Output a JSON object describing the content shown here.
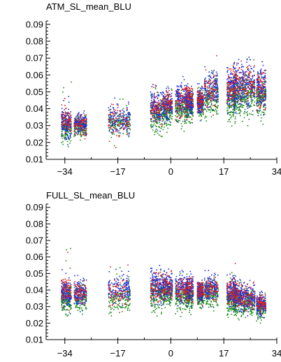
{
  "chart_data": [
    {
      "type": "scatter",
      "title": "ATM_SL_mean_BLU",
      "xlabel": "",
      "ylabel": "",
      "xlim": [
        -40,
        34
      ],
      "ylim": [
        0.01,
        0.092
      ],
      "x_ticks": [
        -34,
        -17,
        0,
        17,
        34
      ],
      "x_tick_labels": [
        "−34",
        "−17",
        "0",
        "17",
        "34"
      ],
      "y_ticks": [
        0.01,
        0.02,
        0.03,
        0.04,
        0.05,
        0.06,
        0.07,
        0.08,
        0.09
      ],
      "y_tick_labels": [
        "0.01",
        "0.02",
        "0.03",
        "0.04",
        "0.05",
        "0.06",
        "0.07",
        "0.08",
        "0.09"
      ],
      "grid": false,
      "legend": "none",
      "series_colors": {
        "blue": "#1f2fd6",
        "red": "#e02020",
        "green": "#1a8a1a"
      },
      "clusters": [
        {
          "x": -33.5,
          "width": 1.6,
          "blue": 0.032,
          "red": 0.033,
          "green": 0.028,
          "spread": 0.004,
          "max": 0.057
        },
        {
          "x": -29.0,
          "width": 2.0,
          "blue": 0.031,
          "red": 0.03,
          "green": 0.029,
          "spread": 0.003,
          "max": 0.036
        },
        {
          "x": -16.5,
          "width": 3.5,
          "blue": 0.034,
          "red": 0.032,
          "green": 0.031,
          "spread": 0.004,
          "max": 0.047
        },
        {
          "x": -4.5,
          "width": 2.0,
          "blue": 0.04,
          "red": 0.039,
          "green": 0.036,
          "spread": 0.005,
          "max": 0.055
        },
        {
          "x": -1.0,
          "width": 1.5,
          "blue": 0.042,
          "red": 0.044,
          "green": 0.038,
          "spread": 0.004,
          "max": 0.053
        },
        {
          "x": 3.5,
          "width": 2.0,
          "blue": 0.045,
          "red": 0.044,
          "green": 0.04,
          "spread": 0.005,
          "max": 0.054
        },
        {
          "x": 6.0,
          "width": 1.2,
          "blue": 0.044,
          "red": 0.046,
          "green": 0.041,
          "spread": 0.004,
          "max": 0.052
        },
        {
          "x": 9.5,
          "width": 1.0,
          "blue": 0.044,
          "red": 0.045,
          "green": 0.043,
          "spread": 0.004,
          "max": 0.05
        },
        {
          "x": 13.0,
          "width": 2.2,
          "blue": 0.051,
          "red": 0.05,
          "green": 0.046,
          "spread": 0.005,
          "max": 0.063
        },
        {
          "x": 19.5,
          "width": 1.5,
          "blue": 0.051,
          "red": 0.052,
          "green": 0.045,
          "spread": 0.006,
          "max": 0.064
        },
        {
          "x": 21.5,
          "width": 1.5,
          "blue": 0.053,
          "red": 0.056,
          "green": 0.047,
          "spread": 0.006,
          "max": 0.076
        },
        {
          "x": 25.0,
          "width": 2.0,
          "blue": 0.054,
          "red": 0.055,
          "green": 0.048,
          "spread": 0.006,
          "max": 0.071
        },
        {
          "x": 29.0,
          "width": 1.5,
          "blue": 0.051,
          "red": 0.052,
          "green": 0.047,
          "spread": 0.006,
          "max": 0.063
        }
      ]
    },
    {
      "type": "scatter",
      "title": "FULL_SL_mean_BLU",
      "xlabel": "",
      "ylabel": "",
      "xlim": [
        -40,
        34
      ],
      "ylim": [
        0.01,
        0.092
      ],
      "x_ticks": [
        -34,
        -17,
        0,
        17,
        34
      ],
      "x_tick_labels": [
        "−34",
        "−17",
        "0",
        "17",
        "34"
      ],
      "y_ticks": [
        0.01,
        0.02,
        0.03,
        0.04,
        0.05,
        0.06,
        0.07,
        0.08,
        0.09
      ],
      "y_tick_labels": [
        "0.01",
        "0.02",
        "0.03",
        "0.04",
        "0.05",
        "0.06",
        "0.07",
        "0.08",
        "0.09"
      ],
      "grid": false,
      "legend": "none",
      "series_colors": {
        "blue": "#1f2fd6",
        "red": "#e02020",
        "green": "#1a8a1a"
      },
      "clusters": [
        {
          "x": -33.5,
          "width": 1.6,
          "blue": 0.038,
          "red": 0.04,
          "green": 0.034,
          "spread": 0.004,
          "max": 0.068
        },
        {
          "x": -29.0,
          "width": 2.0,
          "blue": 0.038,
          "red": 0.038,
          "green": 0.035,
          "spread": 0.004,
          "max": 0.045
        },
        {
          "x": -16.5,
          "width": 3.5,
          "blue": 0.04,
          "red": 0.038,
          "green": 0.035,
          "spread": 0.004,
          "max": 0.054
        },
        {
          "x": -4.5,
          "width": 2.0,
          "blue": 0.042,
          "red": 0.041,
          "green": 0.037,
          "spread": 0.005,
          "max": 0.056
        },
        {
          "x": -1.0,
          "width": 1.5,
          "blue": 0.042,
          "red": 0.043,
          "green": 0.038,
          "spread": 0.004,
          "max": 0.053
        },
        {
          "x": 3.5,
          "width": 2.0,
          "blue": 0.041,
          "red": 0.04,
          "green": 0.036,
          "spread": 0.004,
          "max": 0.051
        },
        {
          "x": 6.0,
          "width": 1.2,
          "blue": 0.04,
          "red": 0.041,
          "green": 0.036,
          "spread": 0.004,
          "max": 0.047
        },
        {
          "x": 9.5,
          "width": 1.0,
          "blue": 0.039,
          "red": 0.04,
          "green": 0.036,
          "spread": 0.003,
          "max": 0.045
        },
        {
          "x": 13.0,
          "width": 2.2,
          "blue": 0.041,
          "red": 0.04,
          "green": 0.037,
          "spread": 0.004,
          "max": 0.048
        },
        {
          "x": 19.5,
          "width": 1.5,
          "blue": 0.038,
          "red": 0.039,
          "green": 0.034,
          "spread": 0.004,
          "max": 0.051
        },
        {
          "x": 21.5,
          "width": 1.5,
          "blue": 0.036,
          "red": 0.037,
          "green": 0.033,
          "spread": 0.004,
          "max": 0.049
        },
        {
          "x": 25.0,
          "width": 2.0,
          "blue": 0.035,
          "red": 0.036,
          "green": 0.032,
          "spread": 0.004,
          "max": 0.046
        },
        {
          "x": 29.0,
          "width": 1.5,
          "blue": 0.031,
          "red": 0.032,
          "green": 0.029,
          "spread": 0.003,
          "max": 0.039
        }
      ]
    }
  ]
}
